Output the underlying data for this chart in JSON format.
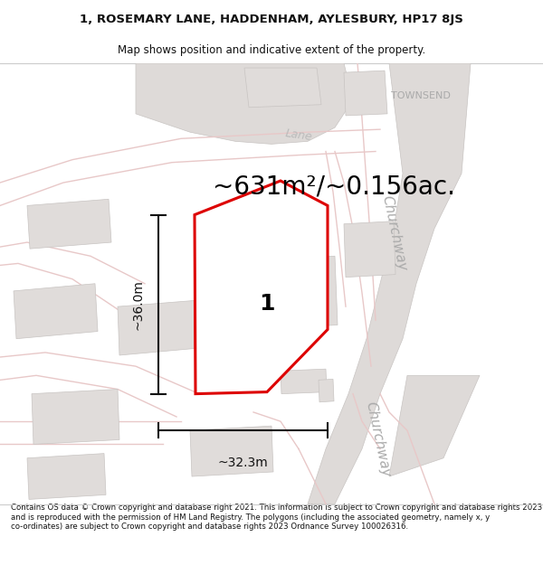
{
  "title": "1, ROSEMARY LANE, HADDENHAM, AYLESBURY, HP17 8JS",
  "subtitle": "Map shows position and indicative extent of the property.",
  "footer": "Contains OS data © Crown copyright and database right 2021. This information is subject to Crown copyright and database rights 2023 and is reproduced with the permission of HM Land Registry. The polygons (including the associated geometry, namely x, y co-ordinates) are subject to Crown copyright and database rights 2023 Ordnance Survey 100026316.",
  "area_text": "~631m²/~0.156ac.",
  "width_label": "~32.3m",
  "height_label": "~36.0m",
  "plot_number": "1",
  "map_bg": "#ffffff",
  "road_color": "#e8c8c8",
  "building_face": "#e0dcda",
  "building_edge": "#c8c4c2",
  "road_gray_face": "#dedad8",
  "road_gray_edge": "#c8c4c2",
  "red_line": "#dd0000",
  "dim_line_color": "#111111",
  "road_label_color": "#aaaaaa",
  "townsend_color": "#aaaaaa",
  "lane_label_color": "#bbbbbb",
  "area_fontsize": 20,
  "dim_fontsize": 10,
  "number_fontsize": 18,
  "churchway_fontsize": 11,
  "lane_fontsize": 9,
  "townsend_fontsize": 8
}
